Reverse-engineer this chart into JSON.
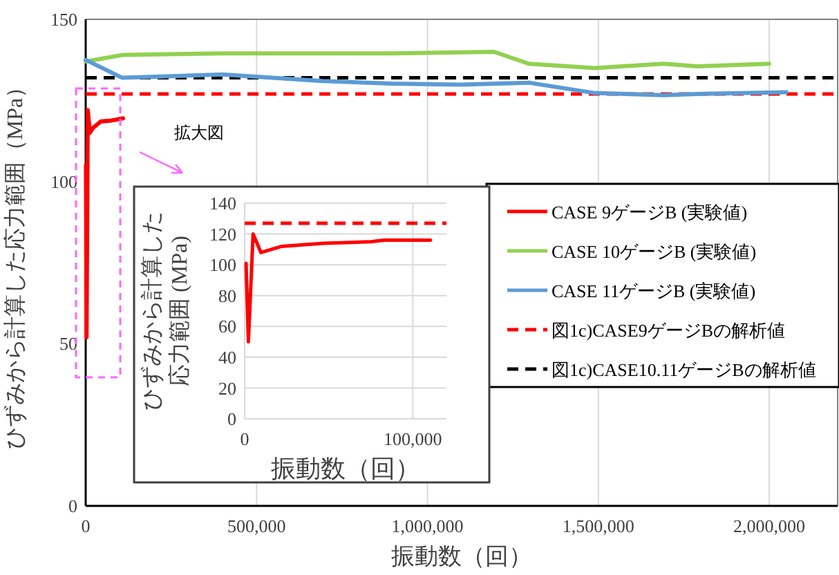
{
  "chart_data": [
    {
      "type": "line",
      "xlabel": "振動数（回）",
      "ylabel": "ひずみから計算した応力範囲（MPa）",
      "annotations": [
        "拡大図"
      ],
      "xlim": [
        0,
        2200000
      ],
      "ylim": [
        0,
        150
      ],
      "xticks": [
        0,
        {
          "value": 500000,
          "label": "500,000"
        },
        {
          "value": 1000000,
          "label": "1,000,000"
        },
        {
          "value": 1500000,
          "label": "1,500,000"
        },
        {
          "value": 2000000,
          "label": "2,000,000"
        }
      ],
      "yticks": [
        0,
        50,
        100,
        150
      ],
      "grid": "x",
      "legend": "right",
      "line_style": "solid",
      "marker": "none",
      "series": [
        {
          "name": "CASE 9ゲージB (実験値)",
          "color": "#ff0000",
          "x": [
            800,
            2500,
            6000,
            12000,
            21000,
            44000,
            75000,
            109000
          ],
          "values": [
            105,
            52,
            122,
            115,
            116.5,
            118.5,
            118.8,
            119.5
          ]
        },
        {
          "name": "CASE 10ゲージB (実験値)",
          "color": "#92d050",
          "x": [
            0,
            106000,
            400000,
            693000,
            894000,
            1195000,
            1296000,
            1489000,
            1690000,
            1790000,
            2000000
          ],
          "values": [
            137,
            139,
            139.5,
            139.5,
            139.5,
            140,
            136.3,
            135,
            136.3,
            135.5,
            136.3
          ]
        },
        {
          "name": "CASE 11ゲージB (実験値)",
          "color": "#5b9bd5",
          "x": [
            0,
            106000,
            400000,
            693000,
            894000,
            1095000,
            1296000,
            1489000,
            1690000,
            1790000,
            2050000
          ],
          "values": [
            137.5,
            132,
            133,
            131,
            130.2,
            129.9,
            130.5,
            127.3,
            126.6,
            127,
            127.5
          ]
        }
      ],
      "ref_lines": [
        {
          "axis": "y",
          "value": 127,
          "label": "図1c)CASE9ゲージBの解析値",
          "color": "#ff0000",
          "line_style": "dashed"
        },
        {
          "axis": "y",
          "value": 132,
          "label": "図1c)CASE10.11ゲージBの解析値",
          "color": "#000000",
          "line_style": "dashed"
        }
      ]
    },
    {
      "type": "line",
      "xlabel": "振動数（回）",
      "ylabel": "ひずみから計算した応力範囲 (MPa)",
      "xlim": [
        0,
        120000
      ],
      "ylim": [
        0,
        140
      ],
      "xticks": [
        0,
        {
          "value": 100000,
          "label": "100,000"
        }
      ],
      "yticks": [
        0,
        20,
        40,
        60,
        80,
        100,
        120,
        140
      ],
      "grid": true,
      "line_style": "solid",
      "marker": "none",
      "series": [
        {
          "color": "#ff0000",
          "x": [
            830,
            2200,
            5000,
            9700,
            22000,
            47000,
            75000,
            83000,
            110500
          ],
          "values": [
            101,
            50,
            120,
            108,
            112,
            114,
            115,
            116,
            116
          ]
        }
      ],
      "ref_lines": [
        {
          "axis": "y",
          "value": 127,
          "color": "#ff0000",
          "line_style": "dashed"
        }
      ]
    }
  ]
}
